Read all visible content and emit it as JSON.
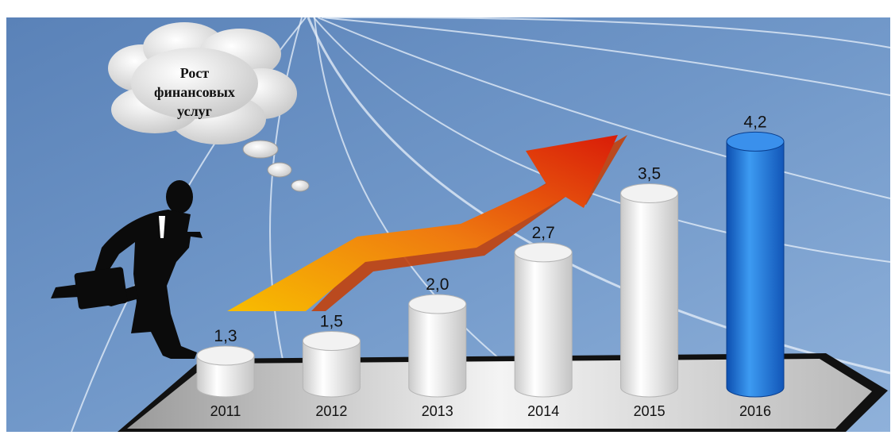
{
  "chart_data": {
    "type": "bar",
    "title": "Рост финансовых услуг",
    "categories": [
      "2011",
      "2012",
      "2013",
      "2014",
      "2015",
      "2016"
    ],
    "values": [
      1.3,
      1.5,
      2.0,
      2.7,
      3.5,
      4.2
    ],
    "value_labels": [
      "1,3",
      "1,5",
      "2,0",
      "2,7",
      "3,5",
      "4,2"
    ],
    "highlight_category": "2016",
    "colors": {
      "background": "#6f94c4",
      "bar": "#e9e9e9",
      "highlight_bar": "#1f78e0",
      "arrow_start": "#f7b500",
      "arrow_end": "#d41a0a"
    }
  },
  "cloud": {
    "lines": [
      "Рост",
      "финансовых",
      "услуг"
    ]
  }
}
